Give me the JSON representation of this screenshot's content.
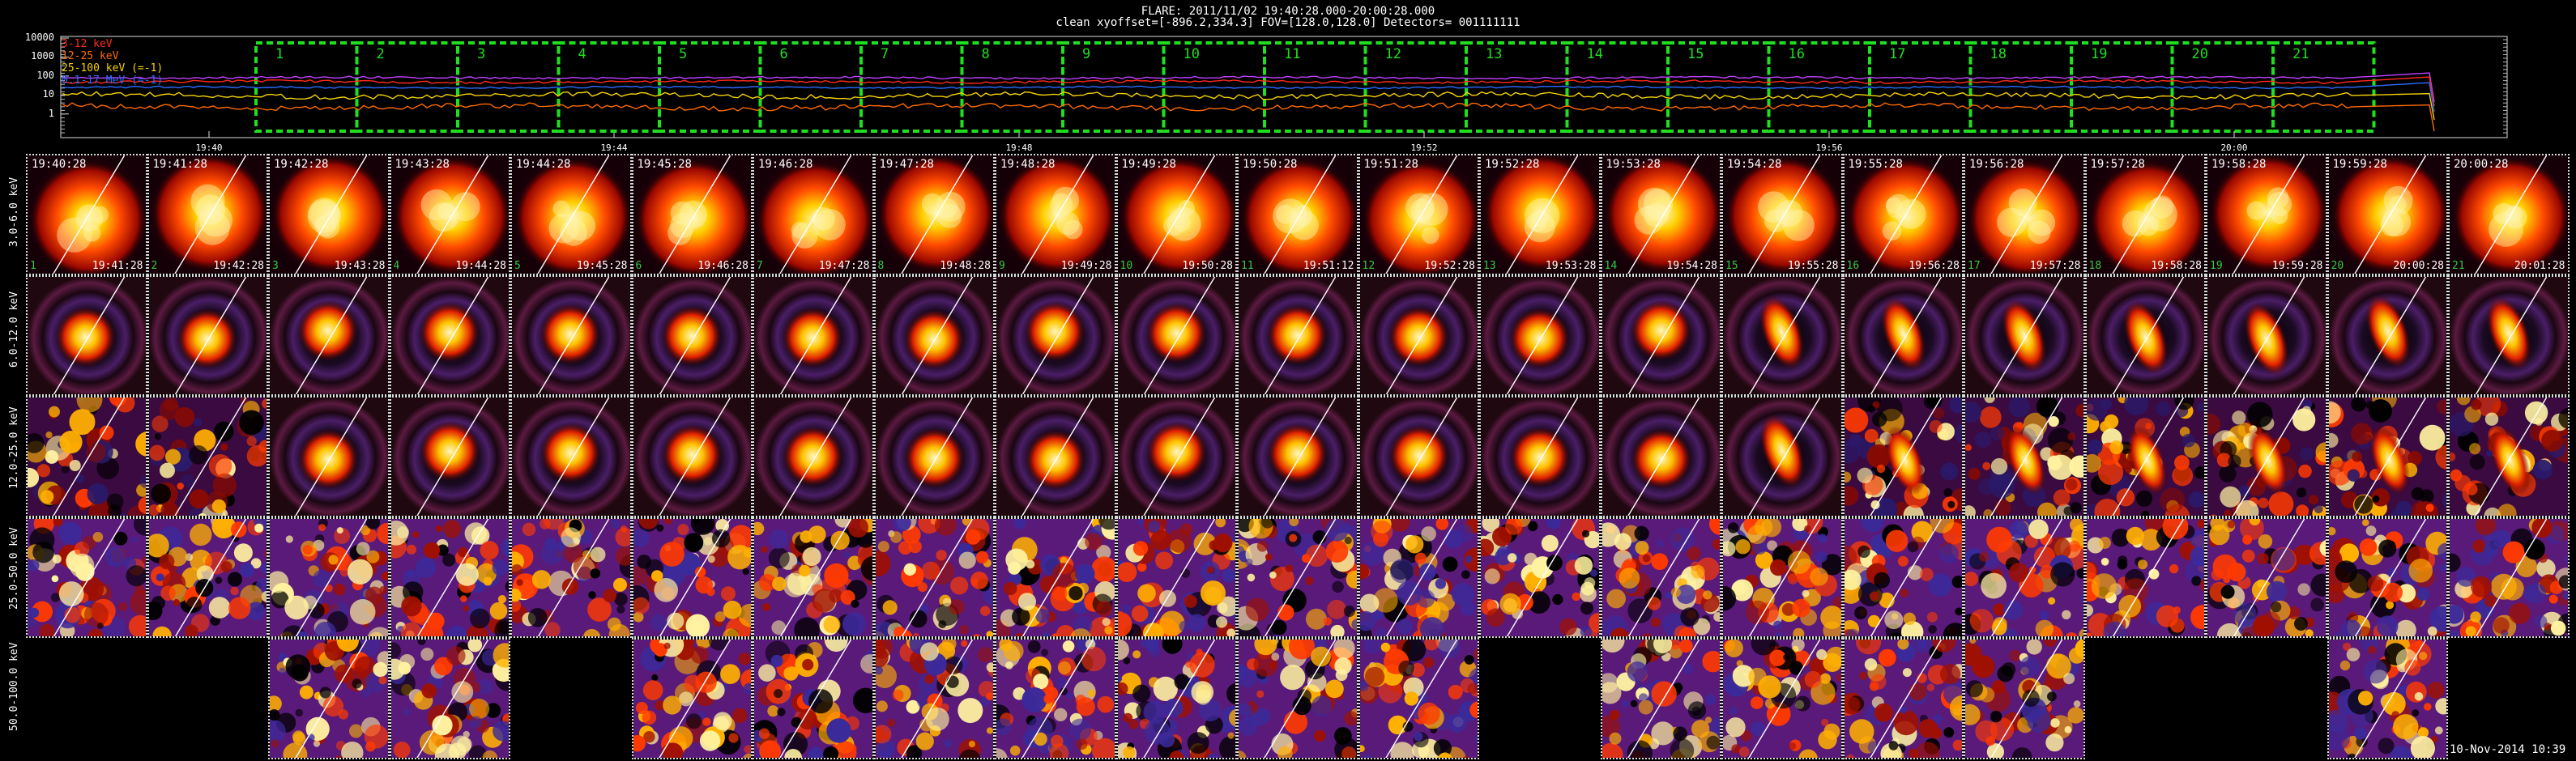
{
  "header": {
    "line1": "FLARE: 2011/11/02 19:40:28.000-20:00:28.000",
    "line2": "clean   xyoffset=[-896.2,334.3]   FOV=[128.0,128.0]   Detectors= 001111111"
  },
  "lightcurve": {
    "y_ticks": [
      "10000",
      "1000",
      "100",
      "10",
      "1"
    ],
    "x_ticks": [
      "19:40",
      "19:44",
      "19:48",
      "19:52",
      "19:56",
      "20:00"
    ],
    "legend": [
      {
        "label": "3-12 keV",
        "color": "#ff2a1a"
      },
      {
        "label": "12-25 keV",
        "color": "#ff6a00"
      },
      {
        "label": "25-100 keV (=-1)",
        "color": "#f5d200"
      },
      {
        "label": "0.1-17 MeV (=-1)",
        "color": "#2a6cff"
      }
    ],
    "extra_line_color": "#c040ff",
    "interval_color": "#1fe01f",
    "interval_labels": [
      "1",
      "2",
      "3",
      "4",
      "5",
      "6",
      "7",
      "8",
      "9",
      "10",
      "11",
      "12",
      "13",
      "14",
      "15",
      "16",
      "17",
      "18",
      "19",
      "20",
      "21"
    ]
  },
  "energy_bands": [
    "3.0-6.0 keV",
    "6.0-12.0 keV",
    "12.0-25.0 keV",
    "25.0-50.0 keV",
    "50.0-100.0 keV"
  ],
  "time_starts": [
    "19:40:28",
    "19:41:28",
    "19:42:28",
    "19:43:28",
    "19:44:28",
    "19:45:28",
    "19:46:28",
    "19:47:28",
    "19:48:28",
    "19:49:28",
    "19:50:28",
    "19:51:28",
    "19:52:28",
    "19:53:28",
    "19:54:28",
    "19:55:28",
    "19:56:28",
    "19:57:28",
    "19:58:28",
    "19:59:28",
    "20:00:28"
  ],
  "time_ends": [
    "19:41:28",
    "19:42:28",
    "19:43:28",
    "19:44:28",
    "19:45:28",
    "19:46:28",
    "19:47:28",
    "19:48:28",
    "19:49:28",
    "19:50:28",
    "19:51:12",
    "19:52:28",
    "19:53:28",
    "19:54:28",
    "19:55:28",
    "19:56:28",
    "19:57:28",
    "19:58:28",
    "19:59:28",
    "20:00:28",
    "20:01:28"
  ],
  "interval_index": [
    "1",
    "2",
    "3",
    "4",
    "5",
    "6",
    "7",
    "8",
    "9",
    "10",
    "11",
    "12",
    "13",
    "14",
    "15",
    "16",
    "17",
    "18",
    "19",
    "20",
    "21"
  ],
  "row5_present": [
    false,
    false,
    true,
    true,
    false,
    true,
    true,
    true,
    true,
    true,
    true,
    true,
    false,
    true,
    true,
    true,
    true,
    false,
    false,
    true,
    false
  ],
  "footer_stamp": "10-Nov-2014 10:39"
}
